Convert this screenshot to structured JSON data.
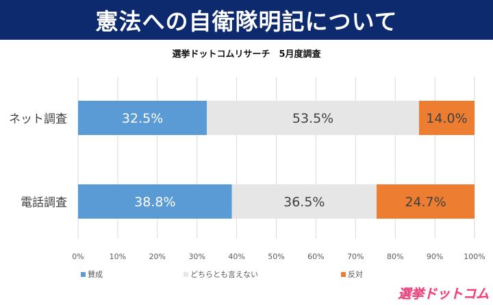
{
  "header": {
    "title": "憲法への自衛隊明記について"
  },
  "chart_data": {
    "type": "bar",
    "orientation": "horizontal",
    "stacked": true,
    "title": "選挙ドットコムリサーチ　5月度調査",
    "categories": [
      "ネット調査",
      "電話調査"
    ],
    "series": [
      {
        "name": "賛成",
        "values": [
          32.5,
          38.8
        ],
        "labels": [
          "32.5%",
          "38.8%"
        ],
        "color": "#5b9bd5",
        "label_color": "#ffffff"
      },
      {
        "name": "どちらとも言えない",
        "values": [
          53.5,
          36.5
        ],
        "labels": [
          "53.5%",
          "36.5%"
        ],
        "color": "#e7e6e6",
        "label_color": "#404040"
      },
      {
        "name": "反対",
        "values": [
          14.0,
          24.7
        ],
        "labels": [
          "14.0%",
          "24.7%"
        ],
        "color": "#ed7d31",
        "label_color": "#404040"
      }
    ],
    "x_ticks": [
      "0%",
      "10%",
      "20%",
      "30%",
      "40%",
      "50%",
      "60%",
      "70%",
      "80%",
      "90%",
      "100%"
    ],
    "xlim": [
      0,
      100
    ],
    "grid": true,
    "legend_position": "bottom"
  },
  "logo": {
    "text": "選挙ドットコム"
  }
}
